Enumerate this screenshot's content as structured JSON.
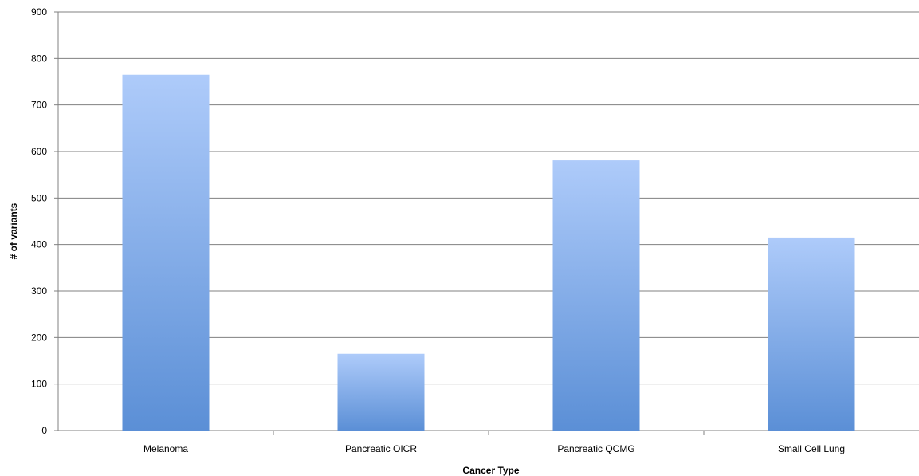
{
  "chart_data": {
    "type": "bar",
    "categories": [
      "Melanoma",
      "Pancreatic OICR",
      "Pancreatic QCMG",
      "Small Cell Lung"
    ],
    "values": [
      765,
      165,
      581,
      415
    ],
    "title": "",
    "xlabel": "Cancer Type",
    "ylabel": "# of variants",
    "ylim": [
      0,
      900
    ],
    "yticks": [
      0,
      100,
      200,
      300,
      400,
      500,
      600,
      700,
      800,
      900
    ],
    "ytick_labels": [
      "0",
      "100",
      "200",
      "300",
      "400",
      "500",
      "600",
      "700",
      "800",
      "900"
    ],
    "grid": true,
    "legend": "none",
    "colors": {
      "bar_top": "#aecbfa",
      "bar_bottom": "#5b8fd6",
      "gridline": "#808080",
      "axis": "#808080"
    }
  }
}
